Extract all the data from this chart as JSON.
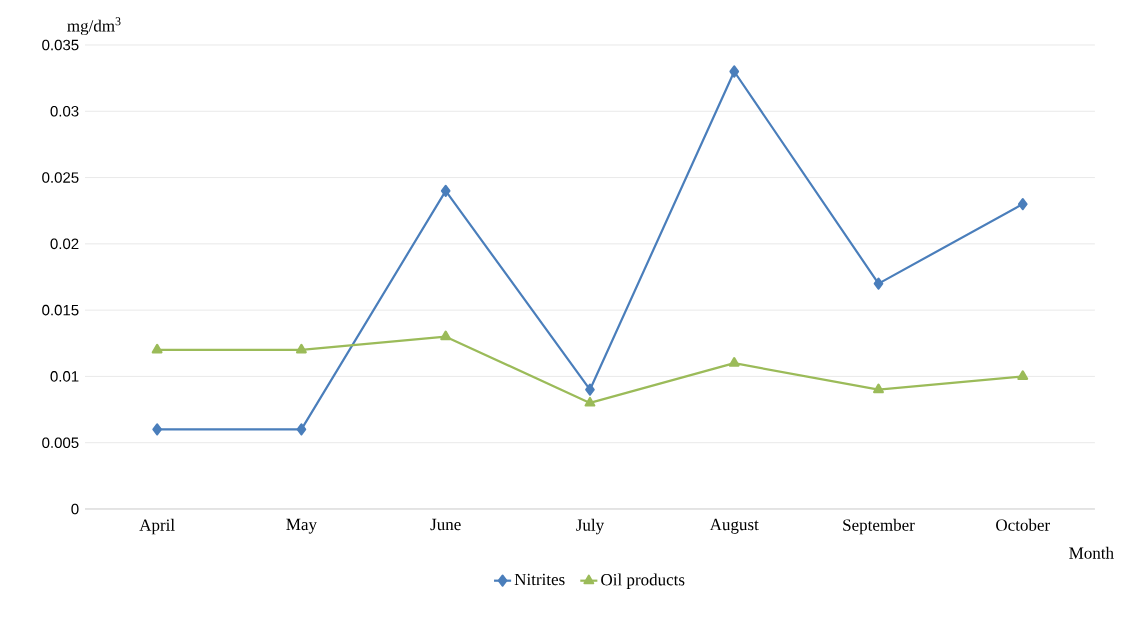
{
  "chart_data": {
    "type": "line",
    "ylabel": "mg/dm$^{3}$",
    "xlabel": "Month",
    "categories": [
      "April",
      "May",
      "June",
      "July",
      "August",
      "September",
      "October"
    ],
    "series": [
      {
        "name": "Nitrites",
        "color": "#4a7ebb",
        "marker": "diamond",
        "values": [
          0.006,
          0.006,
          0.024,
          0.009,
          0.033,
          0.017,
          0.023
        ]
      },
      {
        "name": "Oil products",
        "color": "#9bbb59",
        "marker": "triangle",
        "values": [
          0.012,
          0.012,
          0.013,
          0.008,
          0.011,
          0.009,
          0.01
        ]
      }
    ],
    "ylim": [
      0,
      0.035
    ],
    "yticks": [
      0,
      0.005,
      0.01,
      0.015,
      0.02,
      0.025,
      0.03,
      0.035
    ],
    "grid": "y",
    "legend": "bottom"
  }
}
